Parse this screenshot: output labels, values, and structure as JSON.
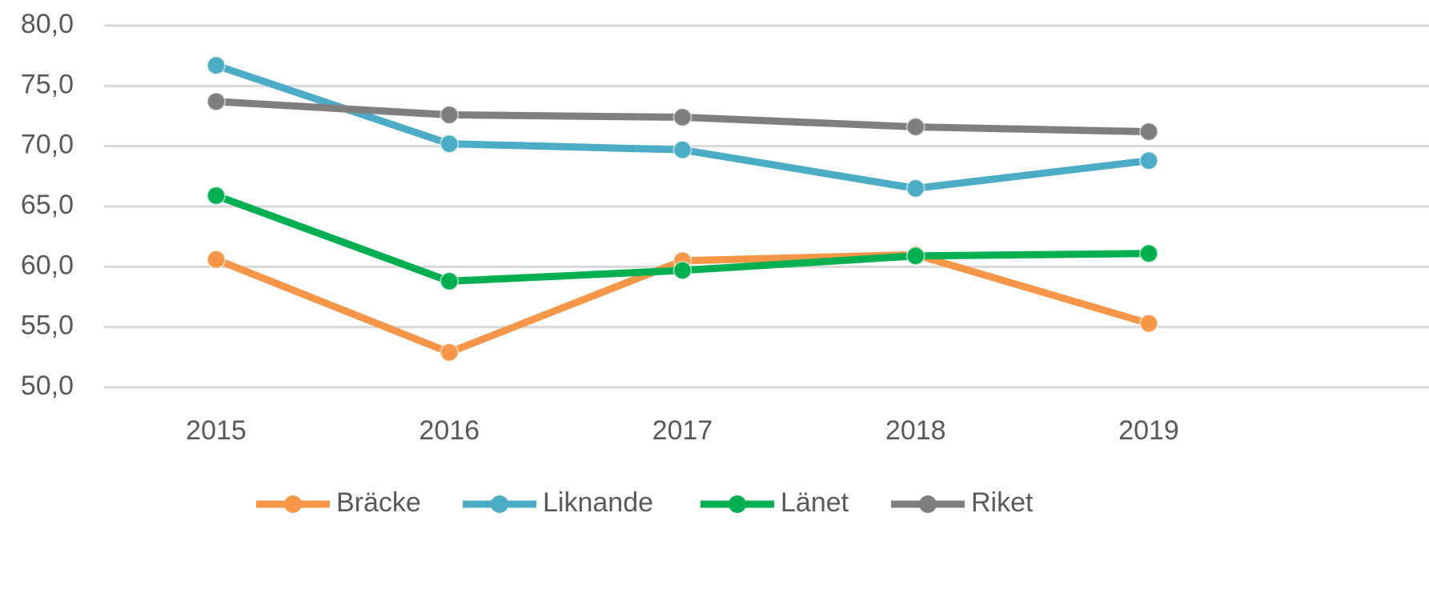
{
  "chart_data": {
    "type": "line",
    "categories": [
      "2015",
      "2016",
      "2017",
      "2018",
      "2019"
    ],
    "series": [
      {
        "name": "Bräcke",
        "color": "#f79646",
        "values": [
          60.6,
          52.9,
          60.5,
          61.0,
          55.3
        ]
      },
      {
        "name": "Liknande",
        "color": "#4bacc6",
        "values": [
          76.7,
          70.2,
          69.7,
          66.5,
          68.8
        ]
      },
      {
        "name": "Länet",
        "color": "#00b050",
        "values": [
          65.9,
          58.8,
          59.7,
          60.9,
          61.1
        ]
      },
      {
        "name": "Riket",
        "color": "#7f7f7f",
        "values": [
          73.7,
          72.6,
          72.4,
          71.6,
          71.2
        ]
      }
    ],
    "ylim": [
      50,
      80
    ],
    "yticks": [
      {
        "value": 50,
        "label": "50,0"
      },
      {
        "value": 55,
        "label": "55,0"
      },
      {
        "value": 60,
        "label": "60,0"
      },
      {
        "value": 65,
        "label": "65,0"
      },
      {
        "value": 70,
        "label": "70,0"
      },
      {
        "value": 75,
        "label": "75,0"
      },
      {
        "value": 80,
        "label": "80,0"
      }
    ],
    "grid": true,
    "legend": "bottom"
  }
}
